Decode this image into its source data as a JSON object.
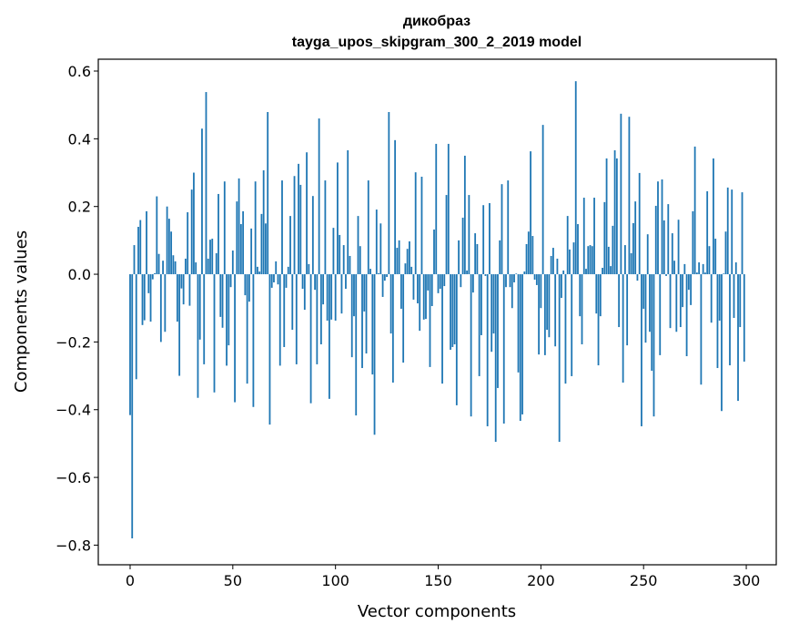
{
  "chart_data": {
    "type": "bar",
    "title": "дикобраз",
    "subtitle": "tayga_upos_skipgram_300_2_2019 model",
    "xlabel": "Vector components",
    "ylabel": "Components values",
    "xlim": [
      -15.5,
      314.6
    ],
    "ylim": [
      -0.858,
      0.635
    ],
    "xticks": [
      0,
      50,
      100,
      150,
      200,
      250,
      300
    ],
    "xtick_labels": [
      "0",
      "50",
      "100",
      "150",
      "200",
      "250",
      "300"
    ],
    "yticks": [
      0.6,
      0.4,
      0.2,
      0.0,
      -0.2,
      -0.4,
      -0.6,
      -0.8
    ],
    "ytick_labels": [
      "0.6",
      "0.4",
      "0.2",
      "0.0",
      "−0.2",
      "−0.4",
      "−0.6",
      "−0.8"
    ],
    "grid": false,
    "color": "#1f77b4",
    "values": [
      -0.416,
      -0.78,
      0.086,
      -0.31,
      0.14,
      0.16,
      -0.15,
      -0.136,
      0.186,
      -0.056,
      -0.14,
      -0.015,
      0.003,
      0.23,
      0.06,
      -0.2,
      0.04,
      -0.17,
      0.2,
      0.164,
      0.126,
      0.056,
      0.038,
      -0.14,
      -0.3,
      -0.042,
      -0.089,
      0.046,
      0.183,
      -0.093,
      0.25,
      0.3,
      0.035,
      -0.365,
      -0.193,
      0.43,
      -0.266,
      0.538,
      0.046,
      0.102,
      0.105,
      -0.349,
      0.062,
      0.237,
      -0.126,
      -0.158,
      0.274,
      -0.27,
      -0.21,
      -0.038,
      0.07,
      -0.378,
      0.215,
      0.283,
      0.148,
      0.186,
      -0.062,
      -0.323,
      -0.081,
      0.135,
      -0.392,
      0.274,
      0.022,
      0.008,
      0.178,
      0.307,
      0.15,
      0.479,
      -0.444,
      -0.04,
      -0.024,
      0.038,
      -0.03,
      -0.27,
      0.277,
      -0.215,
      -0.04,
      0.022,
      0.172,
      -0.164,
      0.29,
      -0.266,
      0.326,
      0.264,
      -0.043,
      -0.105,
      0.36,
      0.03,
      -0.381,
      0.231,
      -0.046,
      -0.266,
      0.46,
      -0.207,
      -0.089,
      0.277,
      -0.137,
      -0.368,
      -0.134,
      0.137,
      -0.137,
      0.33,
      0.116,
      -0.116,
      0.086,
      -0.043,
      0.366,
      0.054,
      -0.245,
      -0.124,
      -0.417,
      0.172,
      0.083,
      -0.277,
      -0.11,
      -0.234,
      0.277,
      0.016,
      -0.296,
      -0.474,
      0.191,
      0.003,
      0.15,
      -0.067,
      -0.019,
      -0.008,
      0.479,
      -0.175,
      -0.32,
      0.396,
      0.078,
      0.1,
      -0.102,
      -0.261,
      0.032,
      0.075,
      0.097,
      0.022,
      -0.075,
      0.301,
      -0.086,
      -0.167,
      0.288,
      -0.134,
      -0.132,
      -0.048,
      -0.274,
      -0.094,
      0.132,
      0.385,
      -0.056,
      -0.043,
      -0.323,
      -0.035,
      0.234,
      0.385,
      -0.223,
      -0.215,
      -0.207,
      -0.387,
      0.1,
      -0.038,
      0.167,
      0.35,
      0.011,
      0.234,
      -0.42,
      -0.054,
      0.121,
      0.089,
      -0.301,
      -0.18,
      0.204,
      -0.005,
      -0.449,
      0.21,
      -0.229,
      -0.175,
      -0.495,
      -0.336,
      0.1,
      0.266,
      -0.441,
      -0.038,
      0.277,
      -0.038,
      -0.1,
      -0.024,
      0.002,
      -0.29,
      -0.433,
      -0.414,
      0.008,
      0.089,
      0.126,
      0.363,
      0.113,
      -0.016,
      -0.032,
      -0.237,
      -0.1,
      0.441,
      -0.239,
      -0.164,
      -0.186,
      0.054,
      0.078,
      -0.213,
      0.046,
      -0.495,
      -0.07,
      0.011,
      -0.323,
      0.172,
      0.073,
      -0.301,
      0.094,
      0.57,
      0.148,
      -0.124,
      -0.207,
      0.226,
      0.016,
      0.083,
      0.086,
      0.083,
      0.226,
      -0.116,
      -0.269,
      -0.124,
      0.019,
      0.213,
      0.342,
      0.081,
      0.024,
      0.143,
      0.366,
      0.342,
      -0.156,
      0.474,
      -0.32,
      0.086,
      -0.21,
      0.465,
      0.062,
      0.151,
      0.215,
      -0.019,
      0.299,
      -0.449,
      -0.102,
      -0.202,
      0.118,
      -0.17,
      -0.285,
      -0.42,
      0.202,
      0.274,
      -0.239,
      0.28,
      0.159,
      -0.005,
      0.207,
      -0.159,
      0.121,
      0.04,
      -0.17,
      0.161,
      -0.156,
      -0.097,
      0.03,
      -0.242,
      -0.046,
      -0.091,
      0.186,
      0.377,
      0.005,
      0.035,
      -0.326,
      0.03,
      0.005,
      0.245,
      0.083,
      -0.143,
      0.342,
      0.105,
      -0.277,
      -0.137,
      -0.404,
      0.002,
      0.126,
      0.256,
      -0.269,
      0.25,
      -0.129,
      0.035,
      -0.374,
      -0.156,
      0.242,
      -0.258
    ]
  }
}
